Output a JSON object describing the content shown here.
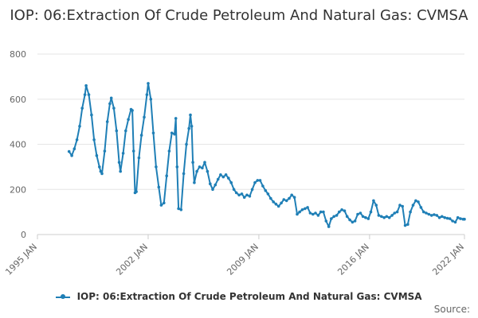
{
  "chart_data": {
    "type": "line",
    "title": "IOP: 06:Extraction Of Crude Petroleum And Natural Gas: CVMSA",
    "xlabel": "",
    "ylabel": "",
    "ylim": [
      0,
      800
    ],
    "yticks": [
      "0",
      "200",
      "400",
      "600",
      "800"
    ],
    "xtick_labels": [
      "1995 JAN",
      "2002 JAN",
      "2009 JAN",
      "2016 JAN",
      "2022 JAN"
    ],
    "xtick_years": [
      1995,
      2002,
      2009,
      2016,
      2022
    ],
    "xlim": [
      1995,
      2022
    ],
    "grid": true,
    "legend_position": "bottom",
    "series": [
      {
        "name": "IOP: 06:Extraction Of Crude Petroleum And Natural Gas: CVMSA",
        "color": "#1f7fb6",
        "points": [
          [
            1997.0,
            368
          ],
          [
            1997.17,
            350
          ],
          [
            1997.33,
            380
          ],
          [
            1997.5,
            420
          ],
          [
            1997.67,
            480
          ],
          [
            1997.83,
            560
          ],
          [
            1998.0,
            620
          ],
          [
            1998.08,
            660
          ],
          [
            1998.25,
            620
          ],
          [
            1998.42,
            530
          ],
          [
            1998.58,
            420
          ],
          [
            1998.75,
            350
          ],
          [
            1998.92,
            300
          ],
          [
            1999.0,
            280
          ],
          [
            1999.08,
            270
          ],
          [
            1999.25,
            370
          ],
          [
            1999.42,
            500
          ],
          [
            1999.58,
            580
          ],
          [
            1999.67,
            605
          ],
          [
            1999.83,
            560
          ],
          [
            2000.0,
            460
          ],
          [
            2000.17,
            320
          ],
          [
            2000.25,
            280
          ],
          [
            2000.42,
            360
          ],
          [
            2000.58,
            460
          ],
          [
            2000.75,
            510
          ],
          [
            2000.92,
            555
          ],
          [
            2001.0,
            550
          ],
          [
            2001.08,
            370
          ],
          [
            2001.17,
            185
          ],
          [
            2001.25,
            190
          ],
          [
            2001.42,
            340
          ],
          [
            2001.58,
            440
          ],
          [
            2001.75,
            520
          ],
          [
            2001.92,
            620
          ],
          [
            2002.0,
            670
          ],
          [
            2002.17,
            600
          ],
          [
            2002.33,
            450
          ],
          [
            2002.5,
            300
          ],
          [
            2002.67,
            210
          ],
          [
            2002.83,
            130
          ],
          [
            2003.0,
            140
          ],
          [
            2003.17,
            260
          ],
          [
            2003.33,
            370
          ],
          [
            2003.5,
            450
          ],
          [
            2003.67,
            445
          ],
          [
            2003.75,
            515
          ],
          [
            2003.83,
            300
          ],
          [
            2003.92,
            115
          ],
          [
            2004.08,
            110
          ],
          [
            2004.25,
            270
          ],
          [
            2004.42,
            400
          ],
          [
            2004.58,
            470
          ],
          [
            2004.67,
            530
          ],
          [
            2004.75,
            480
          ],
          [
            2004.83,
            320
          ],
          [
            2004.92,
            230
          ],
          [
            2005.08,
            280
          ],
          [
            2005.25,
            300
          ],
          [
            2005.42,
            295
          ],
          [
            2005.58,
            320
          ],
          [
            2005.75,
            280
          ],
          [
            2005.92,
            225
          ],
          [
            2006.08,
            200
          ],
          [
            2006.25,
            220
          ],
          [
            2006.42,
            245
          ],
          [
            2006.58,
            265
          ],
          [
            2006.75,
            255
          ],
          [
            2006.92,
            265
          ],
          [
            2007.08,
            250
          ],
          [
            2007.25,
            230
          ],
          [
            2007.42,
            200
          ],
          [
            2007.58,
            185
          ],
          [
            2007.75,
            175
          ],
          [
            2007.92,
            180
          ],
          [
            2008.08,
            165
          ],
          [
            2008.25,
            175
          ],
          [
            2008.42,
            170
          ],
          [
            2008.58,
            200
          ],
          [
            2008.75,
            230
          ],
          [
            2008.92,
            240
          ],
          [
            2009.08,
            240
          ],
          [
            2009.25,
            215
          ],
          [
            2009.42,
            195
          ],
          [
            2009.58,
            180
          ],
          [
            2009.75,
            160
          ],
          [
            2009.92,
            145
          ],
          [
            2010.08,
            135
          ],
          [
            2010.25,
            125
          ],
          [
            2010.42,
            140
          ],
          [
            2010.58,
            155
          ],
          [
            2010.75,
            150
          ],
          [
            2010.92,
            160
          ],
          [
            2011.08,
            175
          ],
          [
            2011.25,
            165
          ],
          [
            2011.42,
            90
          ],
          [
            2011.58,
            100
          ],
          [
            2011.75,
            110
          ],
          [
            2011.92,
            115
          ],
          [
            2012.08,
            120
          ],
          [
            2012.25,
            95
          ],
          [
            2012.42,
            90
          ],
          [
            2012.58,
            95
          ],
          [
            2012.75,
            85
          ],
          [
            2012.92,
            100
          ],
          [
            2013.08,
            100
          ],
          [
            2013.25,
            60
          ],
          [
            2013.42,
            35
          ],
          [
            2013.58,
            70
          ],
          [
            2013.75,
            80
          ],
          [
            2013.92,
            85
          ],
          [
            2014.08,
            100
          ],
          [
            2014.25,
            110
          ],
          [
            2014.42,
            105
          ],
          [
            2014.58,
            80
          ],
          [
            2014.75,
            65
          ],
          [
            2014.92,
            55
          ],
          [
            2015.08,
            60
          ],
          [
            2015.25,
            90
          ],
          [
            2015.42,
            95
          ],
          [
            2015.58,
            80
          ],
          [
            2015.75,
            75
          ],
          [
            2015.92,
            70
          ],
          [
            2016.08,
            100
          ],
          [
            2016.25,
            150
          ],
          [
            2016.42,
            130
          ],
          [
            2016.58,
            85
          ],
          [
            2016.75,
            80
          ],
          [
            2016.92,
            75
          ],
          [
            2017.08,
            80
          ],
          [
            2017.25,
            75
          ],
          [
            2017.42,
            85
          ],
          [
            2017.58,
            95
          ],
          [
            2017.75,
            100
          ],
          [
            2017.92,
            130
          ],
          [
            2018.08,
            125
          ],
          [
            2018.25,
            40
          ],
          [
            2018.42,
            45
          ],
          [
            2018.58,
            100
          ],
          [
            2018.75,
            130
          ],
          [
            2018.92,
            150
          ],
          [
            2019.08,
            145
          ],
          [
            2019.25,
            120
          ],
          [
            2019.42,
            100
          ],
          [
            2019.58,
            95
          ],
          [
            2019.75,
            90
          ],
          [
            2019.92,
            85
          ],
          [
            2020.08,
            88
          ],
          [
            2020.25,
            85
          ],
          [
            2020.42,
            75
          ],
          [
            2020.58,
            80
          ],
          [
            2020.75,
            75
          ],
          [
            2020.92,
            72
          ],
          [
            2021.08,
            70
          ],
          [
            2021.25,
            60
          ],
          [
            2021.42,
            55
          ],
          [
            2021.58,
            75
          ],
          [
            2021.75,
            70
          ],
          [
            2021.92,
            68
          ],
          [
            2022.0,
            68
          ]
        ]
      }
    ]
  },
  "legend": {
    "label": "IOP: 06:Extraction Of Crude Petroleum And Natural Gas: CVMSA"
  },
  "footer": {
    "source_label": "Source:"
  }
}
